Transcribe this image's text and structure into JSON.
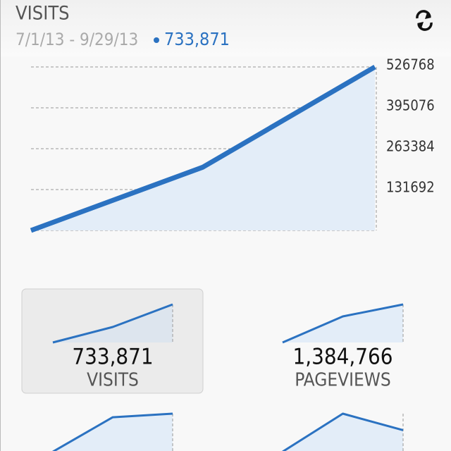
{
  "header": {
    "title": "VISITS",
    "date_range": "7/1/13 - 9/29/13",
    "total": "733,871"
  },
  "chart_data": [
    {
      "type": "line",
      "categories": [
        null,
        null,
        null
      ],
      "values": [
        0,
        204000,
        526768
      ],
      "ylim": [
        0,
        526768
      ],
      "yticks": [
        131692,
        263384,
        395076,
        526768
      ],
      "grid": true,
      "color": "#2b72c1",
      "fill": "#e3edf8"
    },
    {
      "type": "sparkline",
      "values": [
        0,
        22,
        54
      ],
      "color": "#2b72c1",
      "fill": "#dde5ee",
      "caption": "733,871",
      "label": "VISITS",
      "selected": true
    },
    {
      "type": "sparkline",
      "values": [
        0,
        37,
        54
      ],
      "color": "#2b72c1",
      "fill": "#e3edf8",
      "caption": "1,384,766",
      "label": "PAGEVIEWS",
      "selected": false
    },
    {
      "type": "sparkline",
      "values": [
        0,
        48,
        53
      ],
      "color": "#2b72c1",
      "fill": "#e3edf8"
    },
    {
      "type": "sparkline",
      "values": [
        0,
        53,
        30
      ],
      "color": "#2b72c1",
      "fill": "#e3edf8"
    }
  ]
}
